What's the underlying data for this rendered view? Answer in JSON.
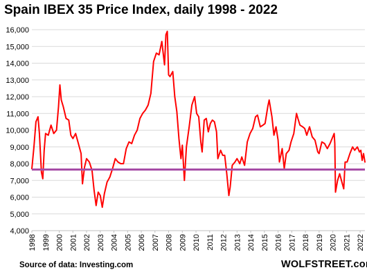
{
  "chart_data": {
    "type": "line",
    "title": "Spain IBEX 35 Price Index, daily 1998 - 2022",
    "xlabel": "",
    "ylabel": "",
    "ylim": [
      4000,
      16000
    ],
    "xlim": [
      1998,
      2022.35
    ],
    "yticks": [
      "4,000",
      "5,000",
      "6,000",
      "7,000",
      "8,000",
      "9,000",
      "10,000",
      "11,000",
      "12,000",
      "13,000",
      "14,000",
      "15,000",
      "16,000"
    ],
    "xticks": [
      "1998",
      "1999",
      "2000",
      "2001",
      "2002",
      "2003",
      "2004",
      "2005",
      "2006",
      "2007",
      "2008",
      "2009",
      "2010",
      "2011",
      "2012",
      "2013",
      "2014",
      "2015",
      "2016",
      "2017",
      "2018",
      "2019",
      "2020",
      "2021",
      "2022"
    ],
    "grid": "horizontal",
    "reference_line": {
      "value": 7650,
      "color": "#a64ca6"
    },
    "series": [
      {
        "color": "#ff0000",
        "points": [
          [
            1998.0,
            7700
          ],
          [
            1998.15,
            9000
          ],
          [
            1998.3,
            10500
          ],
          [
            1998.45,
            10800
          ],
          [
            1998.55,
            9800
          ],
          [
            1998.7,
            7500
          ],
          [
            1998.8,
            7100
          ],
          [
            1998.9,
            8800
          ],
          [
            1999.0,
            9800
          ],
          [
            1999.2,
            9700
          ],
          [
            1999.4,
            10300
          ],
          [
            1999.6,
            9800
          ],
          [
            1999.8,
            10000
          ],
          [
            1999.95,
            11400
          ],
          [
            2000.05,
            12700
          ],
          [
            2000.15,
            11800
          ],
          [
            2000.3,
            11400
          ],
          [
            2000.5,
            10700
          ],
          [
            2000.7,
            10600
          ],
          [
            2000.85,
            9700
          ],
          [
            2001.0,
            9500
          ],
          [
            2001.2,
            9800
          ],
          [
            2001.4,
            9200
          ],
          [
            2001.6,
            8600
          ],
          [
            2001.7,
            6800
          ],
          [
            2001.85,
            7800
          ],
          [
            2002.0,
            8300
          ],
          [
            2002.2,
            8100
          ],
          [
            2002.4,
            7600
          ],
          [
            2002.55,
            6400
          ],
          [
            2002.7,
            5500
          ],
          [
            2002.85,
            6300
          ],
          [
            2003.0,
            6100
          ],
          [
            2003.15,
            5400
          ],
          [
            2003.3,
            6200
          ],
          [
            2003.5,
            6900
          ],
          [
            2003.7,
            7200
          ],
          [
            2003.9,
            7700
          ],
          [
            2004.1,
            8300
          ],
          [
            2004.3,
            8100
          ],
          [
            2004.5,
            8000
          ],
          [
            2004.7,
            8000
          ],
          [
            2004.9,
            8900
          ],
          [
            2005.1,
            9300
          ],
          [
            2005.3,
            9200
          ],
          [
            2005.5,
            9700
          ],
          [
            2005.7,
            10000
          ],
          [
            2005.9,
            10700
          ],
          [
            2006.1,
            11000
          ],
          [
            2006.3,
            11200
          ],
          [
            2006.5,
            11500
          ],
          [
            2006.7,
            12200
          ],
          [
            2006.9,
            14100
          ],
          [
            2007.1,
            14600
          ],
          [
            2007.3,
            14500
          ],
          [
            2007.5,
            15300
          ],
          [
            2007.7,
            13900
          ],
          [
            2007.8,
            15700
          ],
          [
            2007.9,
            15900
          ],
          [
            2008.0,
            13300
          ],
          [
            2008.1,
            13200
          ],
          [
            2008.3,
            13500
          ],
          [
            2008.45,
            12000
          ],
          [
            2008.6,
            11100
          ],
          [
            2008.75,
            9500
          ],
          [
            2008.9,
            8300
          ],
          [
            2009.0,
            9100
          ],
          [
            2009.15,
            7000
          ],
          [
            2009.3,
            9000
          ],
          [
            2009.5,
            10200
          ],
          [
            2009.7,
            11500
          ],
          [
            2009.9,
            12000
          ],
          [
            2010.05,
            11000
          ],
          [
            2010.2,
            10800
          ],
          [
            2010.35,
            9300
          ],
          [
            2010.45,
            8700
          ],
          [
            2010.6,
            10600
          ],
          [
            2010.75,
            10700
          ],
          [
            2010.9,
            9900
          ],
          [
            2011.05,
            10400
          ],
          [
            2011.2,
            10600
          ],
          [
            2011.35,
            10500
          ],
          [
            2011.5,
            9900
          ],
          [
            2011.6,
            8300
          ],
          [
            2011.8,
            8800
          ],
          [
            2011.95,
            8500
          ],
          [
            2012.1,
            8500
          ],
          [
            2012.25,
            7400
          ],
          [
            2012.4,
            6100
          ],
          [
            2012.5,
            6600
          ],
          [
            2012.65,
            7900
          ],
          [
            2012.85,
            8100
          ],
          [
            2013.0,
            8300
          ],
          [
            2013.2,
            8000
          ],
          [
            2013.35,
            8400
          ],
          [
            2013.55,
            7900
          ],
          [
            2013.75,
            9300
          ],
          [
            2013.95,
            9800
          ],
          [
            2014.15,
            10100
          ],
          [
            2014.35,
            10800
          ],
          [
            2014.5,
            10900
          ],
          [
            2014.7,
            10200
          ],
          [
            2014.9,
            10300
          ],
          [
            2015.05,
            10400
          ],
          [
            2015.25,
            11400
          ],
          [
            2015.35,
            11800
          ],
          [
            2015.55,
            10800
          ],
          [
            2015.7,
            9700
          ],
          [
            2015.85,
            10200
          ],
          [
            2016.0,
            9400
          ],
          [
            2016.1,
            8100
          ],
          [
            2016.3,
            8900
          ],
          [
            2016.45,
            7700
          ],
          [
            2016.6,
            8600
          ],
          [
            2016.8,
            8800
          ],
          [
            2016.95,
            9300
          ],
          [
            2017.15,
            9800
          ],
          [
            2017.35,
            11000
          ],
          [
            2017.45,
            10700
          ],
          [
            2017.6,
            10300
          ],
          [
            2017.8,
            10200
          ],
          [
            2017.95,
            10100
          ],
          [
            2018.1,
            9700
          ],
          [
            2018.3,
            10200
          ],
          [
            2018.5,
            9600
          ],
          [
            2018.7,
            9400
          ],
          [
            2018.9,
            8700
          ],
          [
            2019.0,
            8600
          ],
          [
            2019.2,
            9300
          ],
          [
            2019.4,
            9200
          ],
          [
            2019.6,
            8900
          ],
          [
            2019.8,
            9200
          ],
          [
            2019.95,
            9500
          ],
          [
            2020.1,
            9800
          ],
          [
            2020.15,
            9200
          ],
          [
            2020.2,
            6300
          ],
          [
            2020.35,
            7000
          ],
          [
            2020.5,
            7400
          ],
          [
            2020.7,
            6800
          ],
          [
            2020.8,
            6500
          ],
          [
            2020.9,
            8100
          ],
          [
            2021.05,
            8100
          ],
          [
            2021.25,
            8600
          ],
          [
            2021.45,
            9000
          ],
          [
            2021.6,
            8800
          ],
          [
            2021.8,
            9000
          ],
          [
            2021.95,
            8700
          ],
          [
            2022.05,
            8800
          ],
          [
            2022.15,
            8200
          ],
          [
            2022.25,
            8600
          ],
          [
            2022.35,
            8100
          ]
        ]
      }
    ]
  },
  "footer": {
    "source": "Source of data: Investing.com",
    "brand": "WOLFSTREET.com"
  },
  "colors": {
    "line": "#ff0000",
    "reference": "#a64ca6",
    "grid": "#d9d9d9",
    "axis": "#bfbfbf"
  }
}
